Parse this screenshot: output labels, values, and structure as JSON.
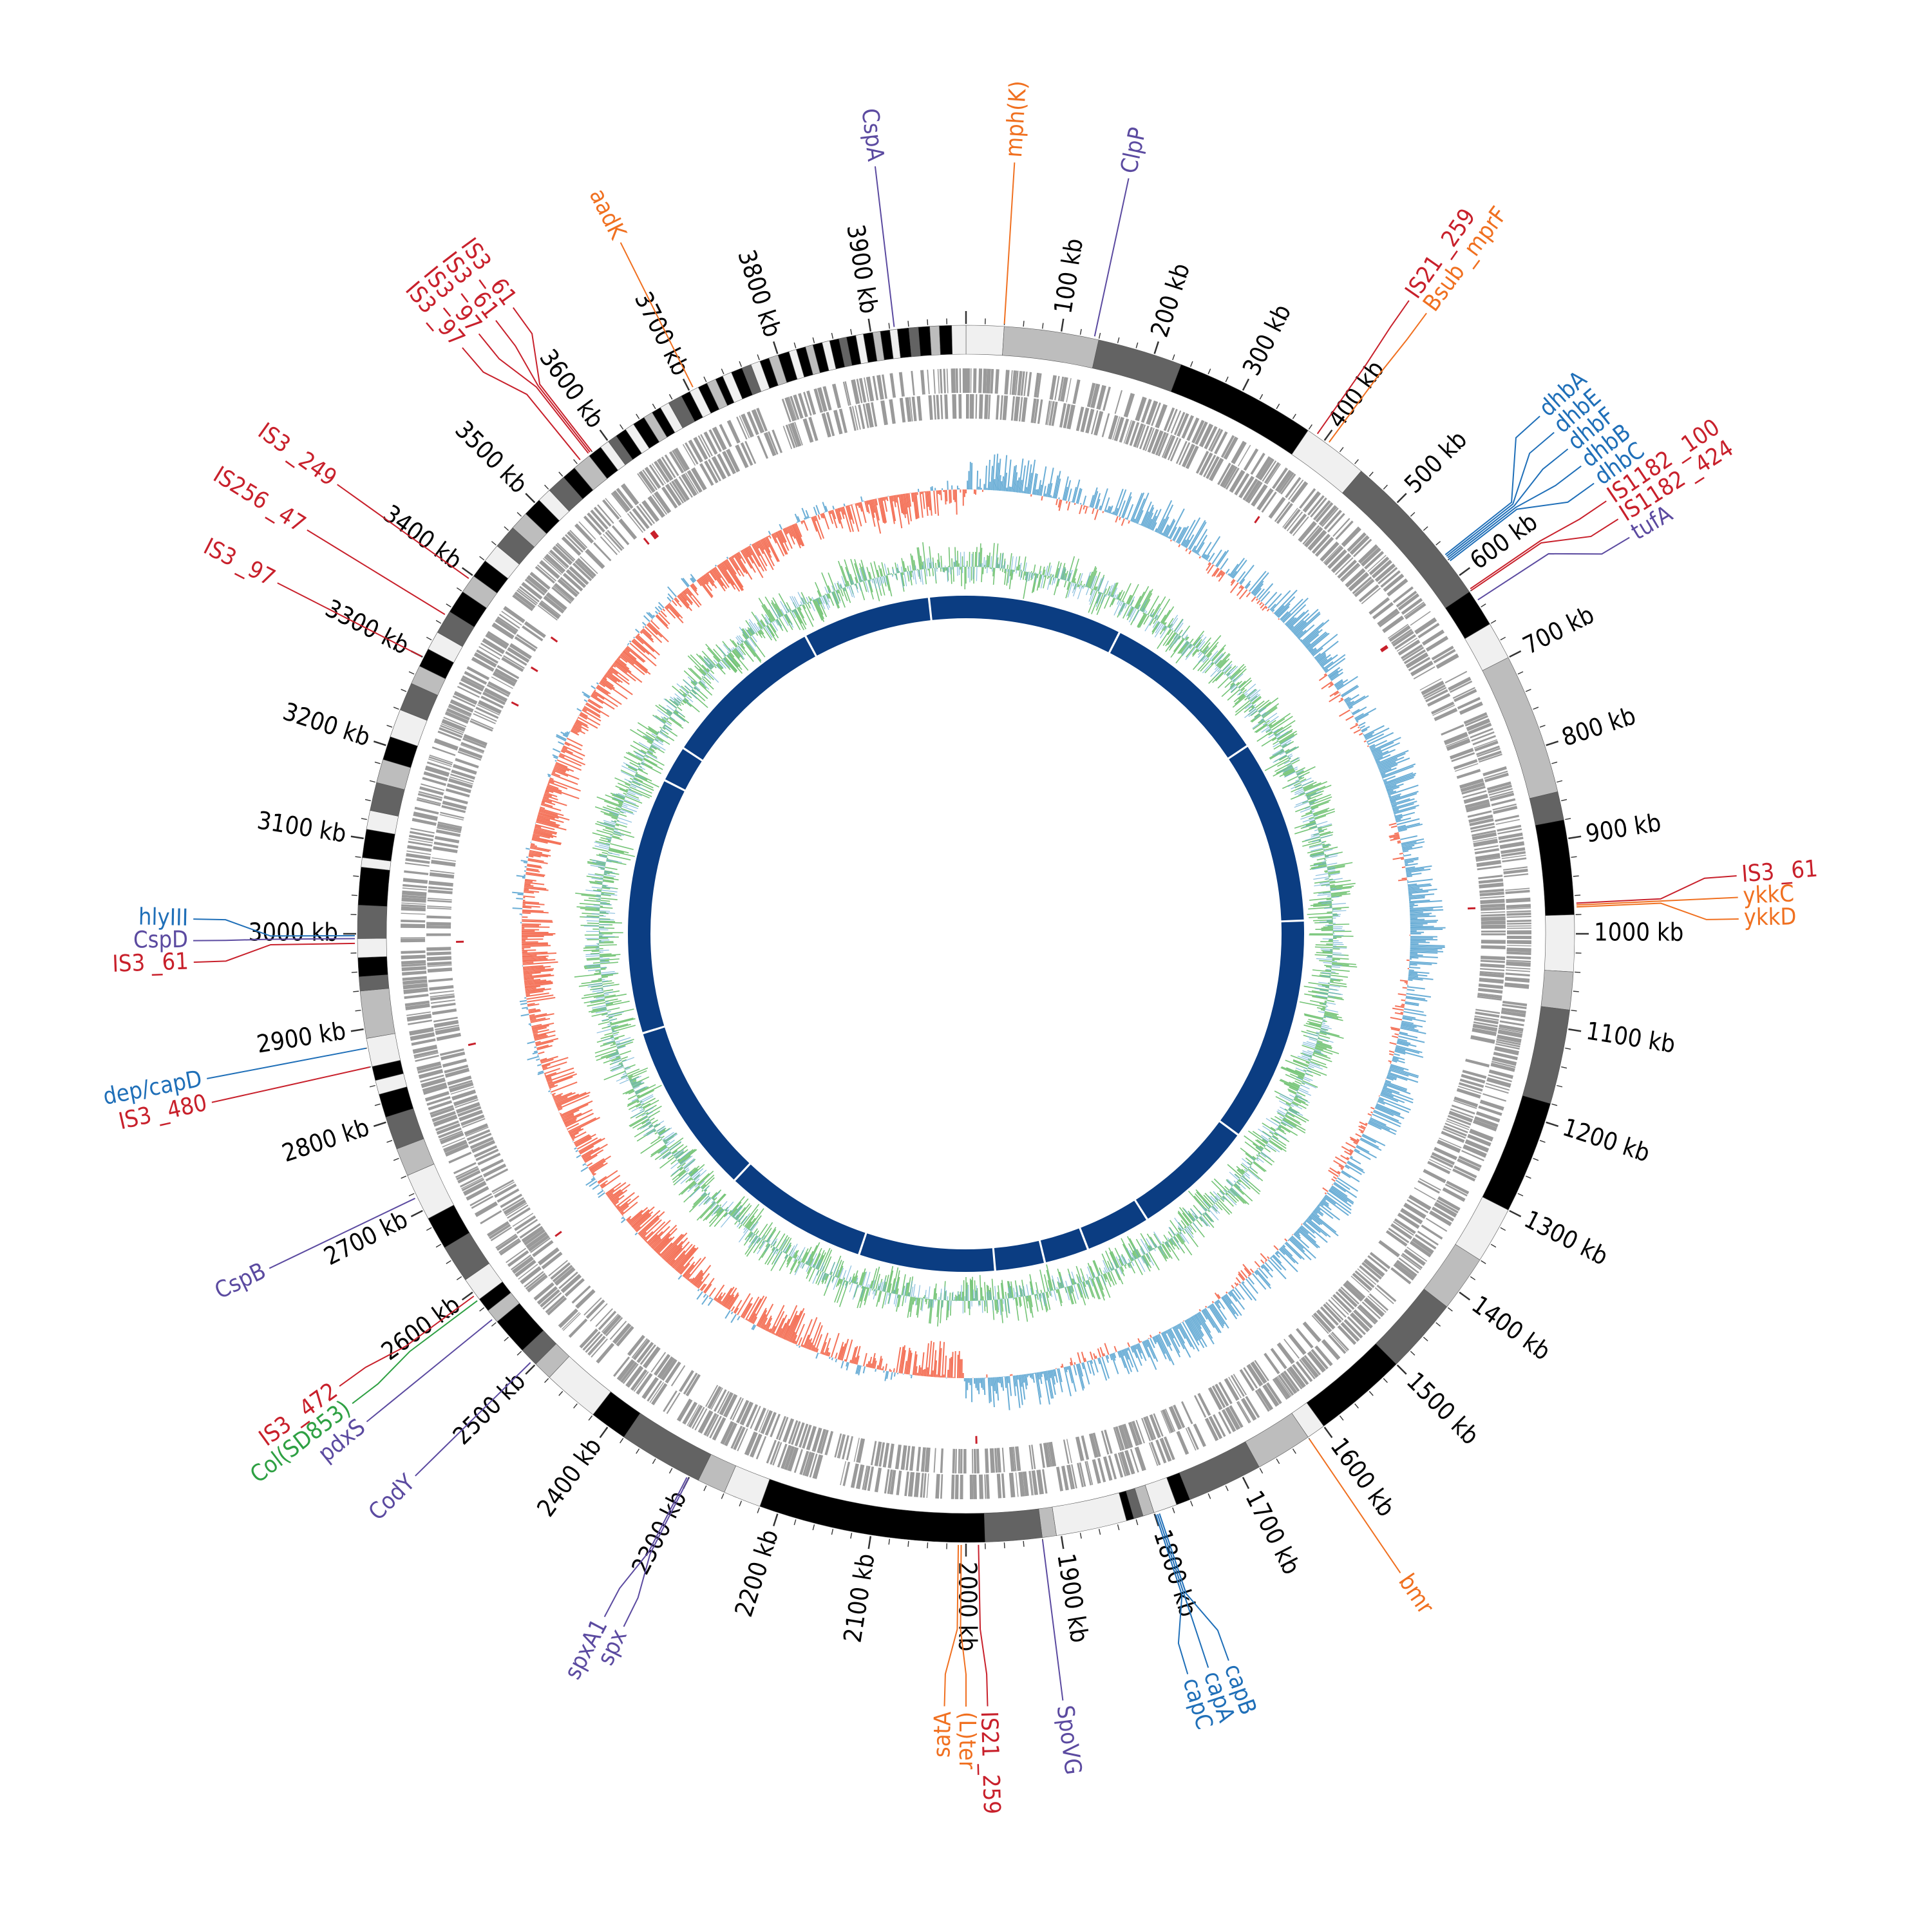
{
  "genome": {
    "length_kb": 4000,
    "tick_labels": [
      "100 kb",
      "200 kb",
      "300 kb",
      "400 kb",
      "500 kb",
      "600 kb",
      "700 kb",
      "800 kb",
      "900 kb",
      "1000 kb",
      "1100 kb",
      "1200 kb",
      "1300 kb",
      "1400 kb",
      "1500 kb",
      "1600 kb",
      "1700 kb",
      "1800 kb",
      "1900 kb",
      "2000 kb",
      "2100 kb",
      "2200 kb",
      "2300 kb",
      "2400 kb",
      "2500 kb",
      "2600 kb",
      "2700 kb",
      "2800 kb",
      "2900 kb",
      "3000 kb",
      "3100 kb",
      "3200 kb",
      "3300 kb",
      "3400 kb",
      "3500 kb",
      "3600 kb",
      "3700 kb",
      "3800 kb",
      "3900 kb"
    ]
  },
  "colors": {
    "is_element": "#c8202b",
    "resistance": "#f07020",
    "virulence": "#1f6fb8",
    "stress": "#5b4aa0",
    "plasmid": "#2ea043",
    "inner_ring": "#0b3d82",
    "gc_skew_pos": "#6baed6",
    "gc_skew_neg": "#f4735a",
    "gc_content": "#74c476",
    "cds_track": "#9a9a9a"
  },
  "karyotype": [
    {
      "start": 0,
      "end": 40,
      "shade": "#f0f0f0"
    },
    {
      "start": 40,
      "end": 140,
      "shade": "#bdbdbd"
    },
    {
      "start": 140,
      "end": 230,
      "shade": "#636363"
    },
    {
      "start": 230,
      "end": 380,
      "shade": "#000000"
    },
    {
      "start": 380,
      "end": 450,
      "shade": "#f0f0f0"
    },
    {
      "start": 450,
      "end": 620,
      "shade": "#636363"
    },
    {
      "start": 620,
      "end": 660,
      "shade": "#000000"
    },
    {
      "start": 660,
      "end": 700,
      "shade": "#f0f0f0"
    },
    {
      "start": 700,
      "end": 850,
      "shade": "#bdbdbd"
    },
    {
      "start": 850,
      "end": 880,
      "shade": "#636363"
    },
    {
      "start": 880,
      "end": 980,
      "shade": "#000000"
    },
    {
      "start": 980,
      "end": 1040,
      "shade": "#f0f0f0"
    },
    {
      "start": 1040,
      "end": 1080,
      "shade": "#bdbdbd"
    },
    {
      "start": 1080,
      "end": 1180,
      "shade": "#636363"
    },
    {
      "start": 1180,
      "end": 1300,
      "shade": "#000000"
    },
    {
      "start": 1300,
      "end": 1360,
      "shade": "#f0f0f0"
    },
    {
      "start": 1360,
      "end": 1420,
      "shade": "#bdbdbd"
    },
    {
      "start": 1420,
      "end": 1500,
      "shade": "#636363"
    },
    {
      "start": 1500,
      "end": 1600,
      "shade": "#000000"
    },
    {
      "start": 1600,
      "end": 1620,
      "shade": "#f0f0f0"
    },
    {
      "start": 1620,
      "end": 1680,
      "shade": "#bdbdbd"
    },
    {
      "start": 1680,
      "end": 1760,
      "shade": "#636363"
    },
    {
      "start": 1760,
      "end": 1775,
      "shade": "#000000"
    },
    {
      "start": 1775,
      "end": 1800,
      "shade": "#f0f0f0"
    },
    {
      "start": 1800,
      "end": 1812,
      "shade": "#bdbdbd"
    },
    {
      "start": 1812,
      "end": 1822,
      "shade": "#636363"
    },
    {
      "start": 1822,
      "end": 1830,
      "shade": "#000000"
    },
    {
      "start": 1830,
      "end": 1905,
      "shade": "#f0f0f0"
    },
    {
      "start": 1905,
      "end": 1920,
      "shade": "#bdbdbd"
    },
    {
      "start": 1920,
      "end": 1980,
      "shade": "#636363"
    },
    {
      "start": 1980,
      "end": 2220,
      "shade": "#000000"
    },
    {
      "start": 2220,
      "end": 2260,
      "shade": "#f0f0f0"
    },
    {
      "start": 2260,
      "end": 2290,
      "shade": "#bdbdbd"
    },
    {
      "start": 2290,
      "end": 2380,
      "shade": "#636363"
    },
    {
      "start": 2380,
      "end": 2420,
      "shade": "#000000"
    },
    {
      "start": 2420,
      "end": 2480,
      "shade": "#f0f0f0"
    },
    {
      "start": 2480,
      "end": 2500,
      "shade": "#bdbdbd"
    },
    {
      "start": 2500,
      "end": 2520,
      "shade": "#636363"
    },
    {
      "start": 2520,
      "end": 2560,
      "shade": "#000000"
    },
    {
      "start": 2560,
      "end": 2575,
      "shade": "#bdbdbd"
    },
    {
      "start": 2575,
      "end": 2590,
      "shade": "#000000"
    },
    {
      "start": 2590,
      "end": 2615,
      "shade": "#f0f0f0"
    },
    {
      "start": 2615,
      "end": 2655,
      "shade": "#636363"
    },
    {
      "start": 2655,
      "end": 2690,
      "shade": "#000000"
    },
    {
      "start": 2690,
      "end": 2740,
      "shade": "#f0f0f0"
    },
    {
      "start": 2740,
      "end": 2770,
      "shade": "#bdbdbd"
    },
    {
      "start": 2770,
      "end": 2805,
      "shade": "#636363"
    },
    {
      "start": 2805,
      "end": 2830,
      "shade": "#000000"
    },
    {
      "start": 2830,
      "end": 2845,
      "shade": "#f0f0f0"
    },
    {
      "start": 2845,
      "end": 2860,
      "shade": "#000000"
    },
    {
      "start": 2860,
      "end": 2890,
      "shade": "#f0f0f0"
    },
    {
      "start": 2890,
      "end": 2940,
      "shade": "#bdbdbd"
    },
    {
      "start": 2940,
      "end": 2955,
      "shade": "#636363"
    },
    {
      "start": 2955,
      "end": 2975,
      "shade": "#000000"
    },
    {
      "start": 2975,
      "end": 2995,
      "shade": "#f0f0f0"
    },
    {
      "start": 2995,
      "end": 3030,
      "shade": "#636363"
    },
    {
      "start": 3030,
      "end": 3070,
      "shade": "#000000"
    },
    {
      "start": 3070,
      "end": 3080,
      "shade": "#f0f0f0"
    },
    {
      "start": 3080,
      "end": 3110,
      "shade": "#000000"
    },
    {
      "start": 3110,
      "end": 3130,
      "shade": "#f0f0f0"
    },
    {
      "start": 3130,
      "end": 3160,
      "shade": "#636363"
    },
    {
      "start": 3160,
      "end": 3185,
      "shade": "#bdbdbd"
    },
    {
      "start": 3185,
      "end": 3210,
      "shade": "#000000"
    },
    {
      "start": 3210,
      "end": 3240,
      "shade": "#f0f0f0"
    },
    {
      "start": 3240,
      "end": 3270,
      "shade": "#636363"
    },
    {
      "start": 3270,
      "end": 3290,
      "shade": "#bdbdbd"
    },
    {
      "start": 3290,
      "end": 3310,
      "shade": "#000000"
    },
    {
      "start": 3310,
      "end": 3330,
      "shade": "#f0f0f0"
    },
    {
      "start": 3330,
      "end": 3355,
      "shade": "#636363"
    },
    {
      "start": 3355,
      "end": 3380,
      "shade": "#000000"
    },
    {
      "start": 3380,
      "end": 3400,
      "shade": "#bdbdbd"
    },
    {
      "start": 3400,
      "end": 3420,
      "shade": "#000000"
    },
    {
      "start": 3420,
      "end": 3440,
      "shade": "#f0f0f0"
    },
    {
      "start": 3440,
      "end": 3465,
      "shade": "#636363"
    },
    {
      "start": 3465,
      "end": 3485,
      "shade": "#bdbdbd"
    },
    {
      "start": 3485,
      "end": 3505,
      "shade": "#000000"
    },
    {
      "start": 3505,
      "end": 3520,
      "shade": "#f0f0f0"
    },
    {
      "start": 3520,
      "end": 3540,
      "shade": "#636363"
    },
    {
      "start": 3540,
      "end": 3555,
      "shade": "#000000"
    },
    {
      "start": 3555,
      "end": 3575,
      "shade": "#bdbdbd"
    },
    {
      "start": 3575,
      "end": 3590,
      "shade": "#000000"
    },
    {
      "start": 3590,
      "end": 3600,
      "shade": "#f0f0f0"
    },
    {
      "start": 3600,
      "end": 3610,
      "shade": "#636363"
    },
    {
      "start": 3610,
      "end": 3622,
      "shade": "#000000"
    },
    {
      "start": 3622,
      "end": 3632,
      "shade": "#f0f0f0"
    },
    {
      "start": 3632,
      "end": 3645,
      "shade": "#000000"
    },
    {
      "start": 3645,
      "end": 3655,
      "shade": "#bdbdbd"
    },
    {
      "start": 3655,
      "end": 3665,
      "shade": "#000000"
    },
    {
      "start": 3665,
      "end": 3675,
      "shade": "#f0f0f0"
    },
    {
      "start": 3675,
      "end": 3690,
      "shade": "#636363"
    },
    {
      "start": 3690,
      "end": 3700,
      "shade": "#000000"
    },
    {
      "start": 3700,
      "end": 3710,
      "shade": "#f0f0f0"
    },
    {
      "start": 3710,
      "end": 3720,
      "shade": "#000000"
    },
    {
      "start": 3720,
      "end": 3730,
      "shade": "#bdbdbd"
    },
    {
      "start": 3730,
      "end": 3738,
      "shade": "#000000"
    },
    {
      "start": 3738,
      "end": 3748,
      "shade": "#f0f0f0"
    },
    {
      "start": 3748,
      "end": 3760,
      "shade": "#000000"
    },
    {
      "start": 3760,
      "end": 3770,
      "shade": "#636363"
    },
    {
      "start": 3770,
      "end": 3780,
      "shade": "#f0f0f0"
    },
    {
      "start": 3780,
      "end": 3790,
      "shade": "#000000"
    },
    {
      "start": 3790,
      "end": 3800,
      "shade": "#bdbdbd"
    },
    {
      "start": 3800,
      "end": 3812,
      "shade": "#000000"
    },
    {
      "start": 3812,
      "end": 3820,
      "shade": "#f0f0f0"
    },
    {
      "start": 3820,
      "end": 3830,
      "shade": "#000000"
    },
    {
      "start": 3830,
      "end": 3838,
      "shade": "#bdbdbd"
    },
    {
      "start": 3838,
      "end": 3848,
      "shade": "#000000"
    },
    {
      "start": 3848,
      "end": 3856,
      "shade": "#f0f0f0"
    },
    {
      "start": 3856,
      "end": 3866,
      "shade": "#000000"
    },
    {
      "start": 3866,
      "end": 3874,
      "shade": "#636363"
    },
    {
      "start": 3874,
      "end": 3884,
      "shade": "#000000"
    },
    {
      "start": 3884,
      "end": 3892,
      "shade": "#f0f0f0"
    },
    {
      "start": 3892,
      "end": 3902,
      "shade": "#000000"
    },
    {
      "start": 3902,
      "end": 3910,
      "shade": "#bdbdbd"
    },
    {
      "start": 3910,
      "end": 3920,
      "shade": "#000000"
    },
    {
      "start": 3920,
      "end": 3928,
      "shade": "#f0f0f0"
    },
    {
      "start": 3928,
      "end": 3940,
      "shade": "#000000"
    },
    {
      "start": 3940,
      "end": 3950,
      "shade": "#636363"
    },
    {
      "start": 3950,
      "end": 3962,
      "shade": "#000000"
    },
    {
      "start": 3962,
      "end": 3972,
      "shade": "#bdbdbd"
    },
    {
      "start": 3972,
      "end": 3985,
      "shade": "#000000"
    },
    {
      "start": 3985,
      "end": 4000,
      "shade": "#f0f0f0"
    }
  ],
  "inner_ring_gaps_kb": [
    300,
    625,
    975,
    1405,
    1640,
    1765,
    1850,
    1945,
    2205,
    2480,
    2810,
    3300,
    3370,
    3685,
    3930
  ],
  "annotations": [
    {
      "label": "CspA",
      "pos": 3925,
      "cat": "stress"
    },
    {
      "label": "mph(K)",
      "pos": 40,
      "cat": "resistance"
    },
    {
      "label": "ClpP",
      "pos": 135,
      "cat": "stress"
    },
    {
      "label": "aadK",
      "pos": 3705,
      "cat": "resistance"
    },
    {
      "label": "IS3 _61",
      "pos": 3580,
      "cat": "is_element"
    },
    {
      "label": "IS3 _61",
      "pos": 3578,
      "cat": "is_element"
    },
    {
      "label": "IS3 _97",
      "pos": 3576,
      "cat": "is_element"
    },
    {
      "label": "IS3 _97",
      "pos": 3565,
      "cat": "is_element"
    },
    {
      "label": "IS3 _249",
      "pos": 3395,
      "cat": "is_element"
    },
    {
      "label": "IS256 _47",
      "pos": 3350,
      "cat": "is_element"
    },
    {
      "label": "IS3 _97",
      "pos": 3300,
      "cat": "is_element"
    },
    {
      "label": "IS21 _259",
      "pos": 390,
      "cat": "is_element"
    },
    {
      "label": "Bsub _mprF",
      "pos": 405,
      "cat": "resistance"
    },
    {
      "label": "dhbA",
      "pos": 574,
      "cat": "virulence"
    },
    {
      "label": "dhbE",
      "pos": 576,
      "cat": "virulence"
    },
    {
      "label": "dhbF",
      "pos": 578,
      "cat": "virulence"
    },
    {
      "label": "dhbB",
      "pos": 580,
      "cat": "virulence"
    },
    {
      "label": "dhbC",
      "pos": 582,
      "cat": "virulence"
    },
    {
      "label": "IS1182 _100",
      "pos": 618,
      "cat": "is_element"
    },
    {
      "label": "IS1182 _424",
      "pos": 620,
      "cat": "is_element"
    },
    {
      "label": "tufA",
      "pos": 632,
      "cat": "stress"
    },
    {
      "label": "IS3 _61",
      "pos": 968,
      "cat": "is_element"
    },
    {
      "label": "ykkC",
      "pos": 970,
      "cat": "resistance"
    },
    {
      "label": "ykkD",
      "pos": 972,
      "cat": "resistance"
    },
    {
      "label": "bmr",
      "pos": 1620,
      "cat": "resistance"
    },
    {
      "label": "capB",
      "pos": 1795,
      "cat": "virulence"
    },
    {
      "label": "capA",
      "pos": 1797,
      "cat": "virulence"
    },
    {
      "label": "capC",
      "pos": 1799,
      "cat": "virulence"
    },
    {
      "label": "SpoVG",
      "pos": 1920,
      "cat": "stress"
    },
    {
      "label": "IS21 _259",
      "pos": 1987,
      "cat": "is_element"
    },
    {
      "label": "(L)ter",
      "pos": 2005,
      "cat": "resistance"
    },
    {
      "label": "satA",
      "pos": 2008,
      "cat": "resistance"
    },
    {
      "label": "spx",
      "pos": 2300,
      "cat": "stress"
    },
    {
      "label": "spxA1",
      "pos": 2302,
      "cat": "stress"
    },
    {
      "label": "CodY",
      "pos": 2505,
      "cat": "stress"
    },
    {
      "label": "pdxS",
      "pos": 2565,
      "cat": "stress"
    },
    {
      "label": "Col(SD853)",
      "pos": 2590,
      "cat": "plasmid"
    },
    {
      "label": "IS3 _472",
      "pos": 2596,
      "cat": "is_element"
    },
    {
      "label": "CspB",
      "pos": 2715,
      "cat": "stress"
    },
    {
      "label": "IS3 _480",
      "pos": 2860,
      "cat": "is_element"
    },
    {
      "label": "dep/capD",
      "pos": 2880,
      "cat": "virulence"
    },
    {
      "label": "IS3 _61",
      "pos": 2990,
      "cat": "is_element"
    },
    {
      "label": "CspD",
      "pos": 2995,
      "cat": "stress"
    },
    {
      "label": "hlyIII",
      "pos": 2998,
      "cat": "virulence"
    }
  ]
}
